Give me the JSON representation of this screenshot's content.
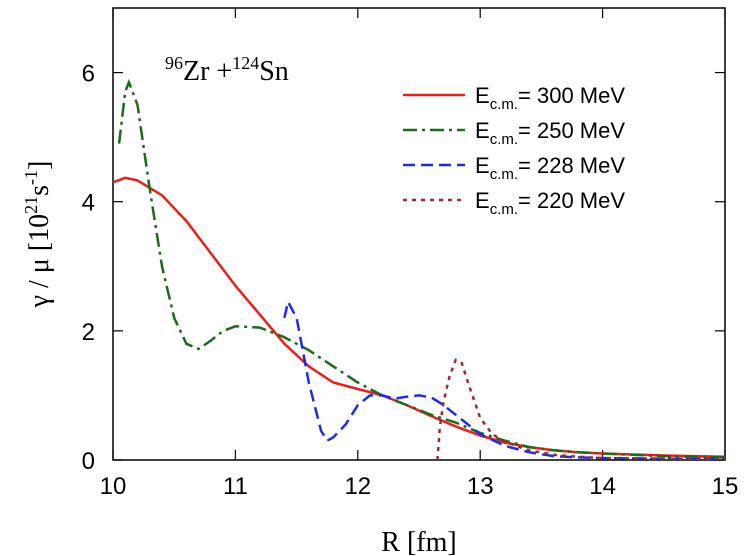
{
  "chart_data": {
    "type": "line",
    "annotation_parts": [
      "96",
      "Zr +",
      "124",
      "Sn"
    ],
    "x_label": "R [fm]",
    "y_label_parts": [
      "γ / μ [10",
      "21",
      "s",
      "-1",
      "]"
    ],
    "legend_symbol": "E",
    "legend_subscript": "c.m.",
    "xlim": [
      10,
      15
    ],
    "xticks": [
      10,
      11,
      12,
      13,
      14,
      15
    ],
    "ylim": [
      0,
      7
    ],
    "yticks": [
      0,
      2,
      4,
      6
    ],
    "series": [
      {
        "name": "= 300 MeV",
        "color": "#e8201c",
        "dash": "solid",
        "x": [
          10.0,
          10.1,
          10.2,
          10.4,
          10.6,
          10.8,
          11.0,
          11.2,
          11.4,
          11.6,
          11.8,
          12.0,
          12.2,
          12.4,
          12.6,
          12.8,
          13.0,
          13.2,
          13.4,
          13.6,
          13.8,
          14.0,
          14.5,
          15.0
        ],
        "values": [
          4.3,
          4.37,
          4.33,
          4.1,
          3.7,
          3.2,
          2.7,
          2.25,
          1.8,
          1.45,
          1.2,
          1.1,
          1.0,
          0.85,
          0.68,
          0.52,
          0.38,
          0.27,
          0.2,
          0.15,
          0.12,
          0.1,
          0.07,
          0.05
        ]
      },
      {
        "name": "= 250 MeV",
        "color": "#1f6a1a",
        "dash": "dashdot",
        "x": [
          10.05,
          10.1,
          10.13,
          10.2,
          10.3,
          10.4,
          10.5,
          10.6,
          10.7,
          10.8,
          10.9,
          11.0,
          11.2,
          11.4,
          11.6,
          11.8,
          12.0,
          12.2,
          12.4,
          12.6,
          12.8,
          13.0,
          13.2,
          13.4,
          13.6,
          13.8,
          14.0,
          14.5,
          15.0
        ],
        "values": [
          4.9,
          5.7,
          5.85,
          5.5,
          4.2,
          3.0,
          2.2,
          1.8,
          1.72,
          1.85,
          2.0,
          2.07,
          2.05,
          1.9,
          1.7,
          1.45,
          1.2,
          1.0,
          0.85,
          0.7,
          0.58,
          0.42,
          0.3,
          0.2,
          0.15,
          0.12,
          0.1,
          0.06,
          0.04
        ]
      },
      {
        "name": "= 228 MeV",
        "color": "#1a2ee8",
        "dash": "dash",
        "x": [
          11.4,
          11.43,
          11.5,
          11.6,
          11.7,
          11.75,
          11.8,
          11.9,
          12.0,
          12.1,
          12.2,
          12.3,
          12.4,
          12.5,
          12.6,
          12.7,
          12.8,
          12.9,
          13.0,
          13.2,
          13.4,
          13.6,
          13.8,
          14.0,
          14.5,
          15.0
        ],
        "values": [
          2.2,
          2.45,
          2.2,
          1.2,
          0.45,
          0.3,
          0.35,
          0.55,
          0.85,
          1.0,
          1.0,
          0.95,
          0.98,
          1.0,
          0.97,
          0.85,
          0.7,
          0.55,
          0.4,
          0.22,
          0.12,
          0.06,
          0.04,
          0.03,
          0.02,
          0.02
        ]
      },
      {
        "name": "= 220 MeV",
        "color": "#9b2a2a",
        "dash": "dot",
        "x": [
          12.65,
          12.67,
          12.7,
          12.75,
          12.8,
          12.85,
          12.9,
          13.0,
          13.1,
          13.2,
          13.4,
          13.6,
          13.8,
          14.0,
          14.5,
          15.0
        ],
        "values": [
          0.0,
          0.5,
          0.9,
          1.3,
          1.55,
          1.5,
          1.2,
          0.65,
          0.4,
          0.28,
          0.15,
          0.08,
          0.05,
          0.03,
          0.02,
          0.02
        ]
      }
    ]
  }
}
